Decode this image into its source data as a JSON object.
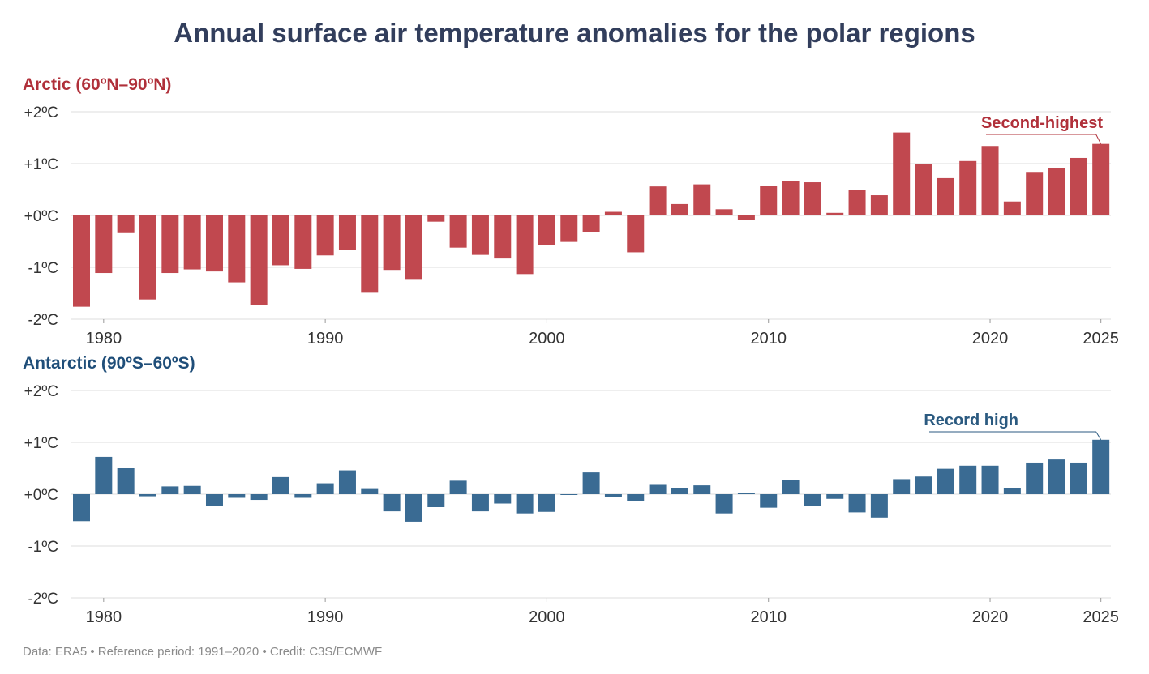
{
  "title": "Annual surface air temperature anomalies for the polar regions",
  "footer": "Data: ERA5 • Reference period: 1991–2020 • Credit: C3S/ECMWF",
  "colors": {
    "arctic": "#c1484f",
    "antarctic": "#3a6b93",
    "title": "#323e5c",
    "grid": "#dddddd"
  },
  "chart_data": [
    {
      "type": "bar",
      "title": "Arctic (60ºN–90ºN)",
      "y_ticks": [
        "+2ºC",
        "+1ºC",
        "+0ºC",
        "-1ºC",
        "-2ºC"
      ],
      "x_ticks": [
        "1980",
        "1990",
        "2000",
        "2010",
        "2020",
        "2025"
      ],
      "ylim": [
        -2,
        2
      ],
      "annotation": {
        "text": "Second-highest",
        "year": 2025
      },
      "x": [
        1979,
        1980,
        1981,
        1982,
        1983,
        1984,
        1985,
        1986,
        1987,
        1988,
        1989,
        1990,
        1991,
        1992,
        1993,
        1994,
        1995,
        1996,
        1997,
        1998,
        1999,
        2000,
        2001,
        2002,
        2003,
        2004,
        2005,
        2006,
        2007,
        2008,
        2009,
        2010,
        2011,
        2012,
        2013,
        2014,
        2015,
        2016,
        2017,
        2018,
        2019,
        2020,
        2021,
        2022,
        2023,
        2024,
        2025
      ],
      "values": [
        -1.76,
        -1.11,
        -0.34,
        -1.62,
        -1.11,
        -1.04,
        -1.08,
        -1.29,
        -1.72,
        -0.96,
        -1.03,
        -0.77,
        -0.67,
        -1.49,
        -1.05,
        -1.24,
        -0.12,
        -0.62,
        -0.76,
        -0.83,
        -1.13,
        -0.57,
        -0.51,
        -0.32,
        0.07,
        -0.71,
        0.56,
        0.22,
        0.6,
        0.12,
        -0.08,
        0.57,
        0.67,
        0.64,
        0.05,
        0.5,
        0.39,
        1.6,
        0.99,
        0.72,
        1.05,
        1.34,
        0.27,
        0.84,
        0.92,
        1.11,
        1.38
      ]
    },
    {
      "type": "bar",
      "title": "Antarctic (90ºS–60ºS)",
      "y_ticks": [
        "+2ºC",
        "+1ºC",
        "+0ºC",
        "-1ºC",
        "-2ºC"
      ],
      "x_ticks": [
        "1980",
        "1990",
        "2000",
        "2010",
        "2020",
        "2025"
      ],
      "ylim": [
        -2,
        2
      ],
      "annotation": {
        "text": "Record high",
        "year": 2025
      },
      "x": [
        1979,
        1980,
        1981,
        1982,
        1983,
        1984,
        1985,
        1986,
        1987,
        1988,
        1989,
        1990,
        1991,
        1992,
        1993,
        1994,
        1995,
        1996,
        1997,
        1998,
        1999,
        2000,
        2001,
        2002,
        2003,
        2004,
        2005,
        2006,
        2007,
        2008,
        2009,
        2010,
        2011,
        2012,
        2013,
        2014,
        2015,
        2016,
        2017,
        2018,
        2019,
        2020,
        2021,
        2022,
        2023,
        2024,
        2025
      ],
      "values": [
        -0.52,
        0.72,
        0.5,
        -0.04,
        0.15,
        0.16,
        -0.22,
        -0.07,
        -0.11,
        0.33,
        -0.07,
        0.21,
        0.46,
        0.1,
        -0.33,
        -0.53,
        -0.25,
        0.26,
        -0.33,
        -0.18,
        -0.37,
        -0.34,
        -0.01,
        0.42,
        -0.06,
        -0.13,
        0.18,
        0.11,
        0.17,
        -0.37,
        0.03,
        -0.26,
        0.28,
        -0.22,
        -0.09,
        -0.35,
        -0.45,
        0.29,
        0.34,
        0.49,
        0.55,
        0.55,
        0.12,
        0.61,
        0.67,
        0.61,
        1.05
      ]
    }
  ]
}
